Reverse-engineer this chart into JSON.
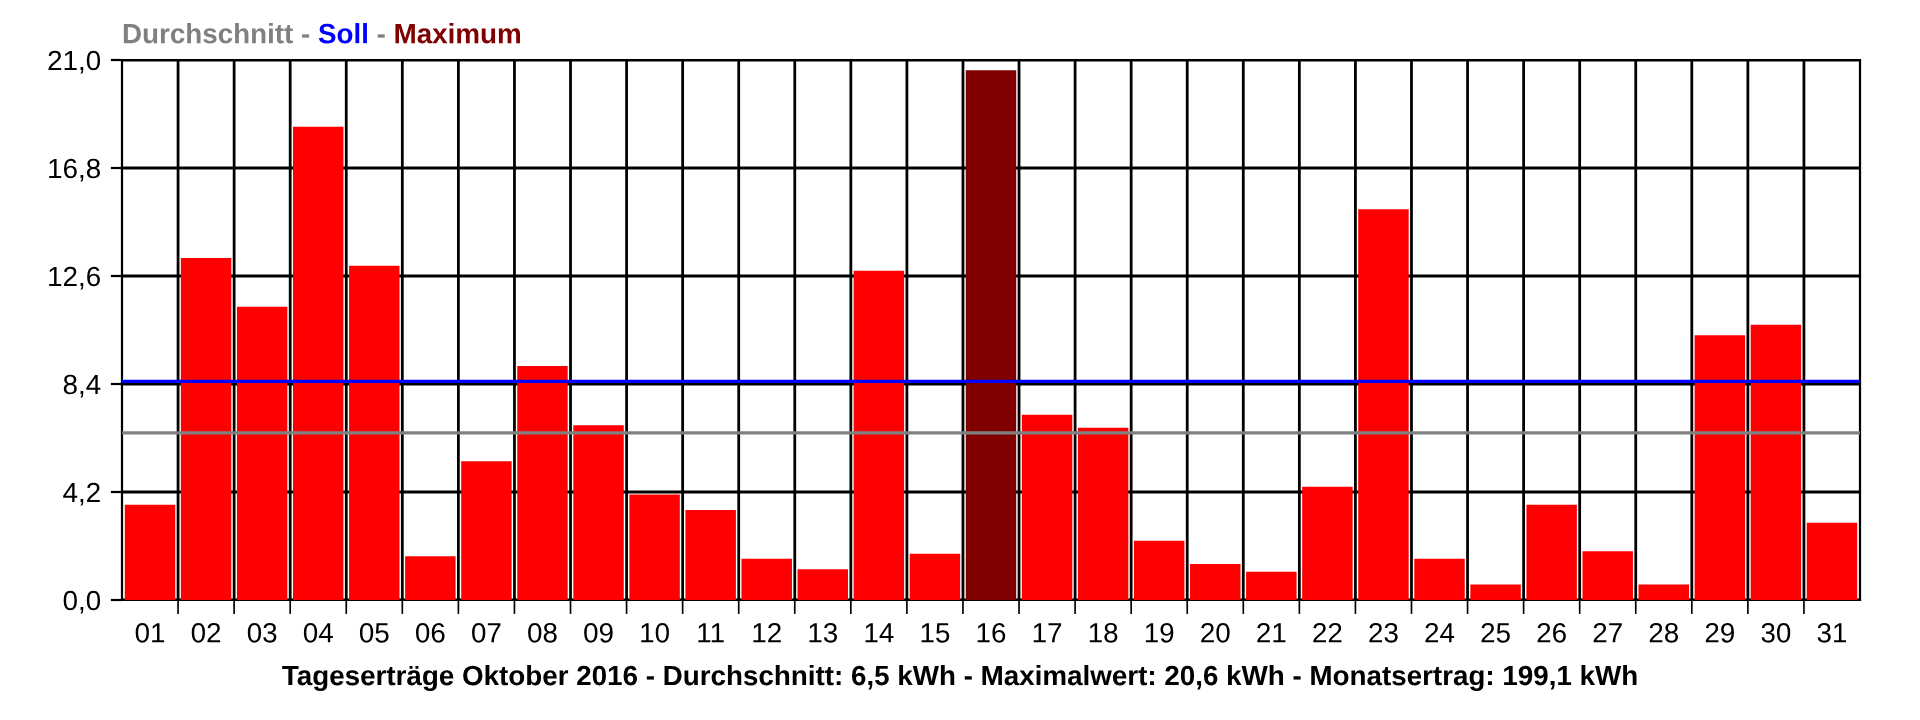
{
  "chart_data": {
    "type": "bar",
    "title": "Tageserträge Oktober 2016 - Durchschnitt: 6,5 kWh - Maximalwert: 20,6 kWh - Monatsertrag: 199,1 kWh",
    "categories": [
      "01",
      "02",
      "03",
      "04",
      "05",
      "06",
      "07",
      "08",
      "09",
      "10",
      "11",
      "12",
      "13",
      "14",
      "15",
      "16",
      "17",
      "18",
      "19",
      "20",
      "21",
      "22",
      "23",
      "24",
      "25",
      "26",
      "27",
      "28",
      "29",
      "30",
      "31"
    ],
    "series": [
      {
        "color": "#ff0000",
        "values": [
          3.7,
          13.3,
          11.4,
          18.4,
          13.0,
          1.7,
          5.4,
          9.1,
          6.8,
          4.1,
          3.5,
          1.6,
          1.2,
          12.8,
          1.8,
          null,
          7.2,
          6.7,
          2.3,
          1.4,
          1.1,
          4.4,
          15.2,
          1.6,
          0.6,
          3.7,
          1.9,
          0.6,
          10.3,
          10.7,
          3.0
        ]
      },
      {
        "name": "Maximum",
        "color": "#800000",
        "values": [
          null,
          null,
          null,
          null,
          null,
          null,
          null,
          null,
          null,
          null,
          null,
          null,
          null,
          null,
          null,
          20.6,
          null,
          null,
          null,
          null,
          null,
          null,
          null,
          null,
          null,
          null,
          null,
          null,
          null,
          null,
          null
        ]
      }
    ],
    "ref_lines": [
      {
        "axis": "y",
        "value": 6.5,
        "label": "Durchschnitt",
        "color": "#808080"
      },
      {
        "axis": "y",
        "value": 8.5,
        "label": "Soll",
        "color": "#0000ff"
      }
    ],
    "ylim": [
      0,
      21
    ],
    "yticks": [
      {
        "value": 0,
        "label": "0,0"
      },
      {
        "value": 4.2,
        "label": "4,2"
      },
      {
        "value": 8.4,
        "label": "8,4"
      },
      {
        "value": 12.6,
        "label": "12,6"
      },
      {
        "value": 16.8,
        "label": "16,8"
      },
      {
        "value": 21,
        "label": "21,0"
      }
    ],
    "grid": true,
    "legend": "top left",
    "annotations": [
      "-",
      "-"
    ]
  }
}
